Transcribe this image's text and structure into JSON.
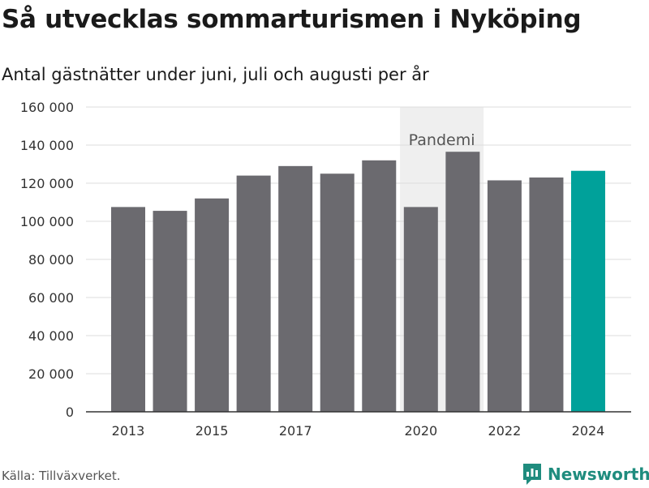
{
  "header": {
    "title": "Så utvecklas sommarturismen i Nyköping",
    "subtitle": "Antal gästnätter under juni, juli och augusti per år"
  },
  "footer": {
    "source": "Källa: Tillväxverket.",
    "brand": "Newsworthy",
    "brand_icon": "bar-chart-speech-bubble-icon"
  },
  "colors": {
    "bar": "#6b6a6f",
    "highlight": "#00a19a",
    "shade": "#efefef",
    "grid": "#dddddd",
    "brand": "#1f8c7e"
  },
  "chart_data": {
    "type": "bar",
    "title": "Så utvecklas sommarturismen i Nyköping",
    "subtitle": "Antal gästnätter under juni, juli och augusti per år",
    "xlabel": "",
    "ylabel": "",
    "categories": [
      2013,
      2014,
      2015,
      2016,
      2017,
      2018,
      2019,
      2020,
      2021,
      2022,
      2023,
      2024
    ],
    "values": [
      107500,
      105500,
      112000,
      124000,
      129000,
      125000,
      132000,
      107500,
      136500,
      121500,
      123000,
      126500
    ],
    "highlight_category": 2024,
    "x_tick_labels": [
      "2013",
      "2015",
      "2017",
      "2020",
      "2022",
      "2024"
    ],
    "y_ticks": [
      0,
      20000,
      40000,
      60000,
      80000,
      100000,
      120000,
      140000,
      160000
    ],
    "y_tick_labels": [
      "0",
      "20 000",
      "40 000",
      "60 000",
      "80 000",
      "100 000",
      "120 000",
      "140 000",
      "160 000"
    ],
    "ylim": [
      0,
      160000
    ],
    "grid": true,
    "legend": "none",
    "annotation": {
      "label": "Pandemi",
      "from": 2020,
      "to": 2021
    }
  }
}
